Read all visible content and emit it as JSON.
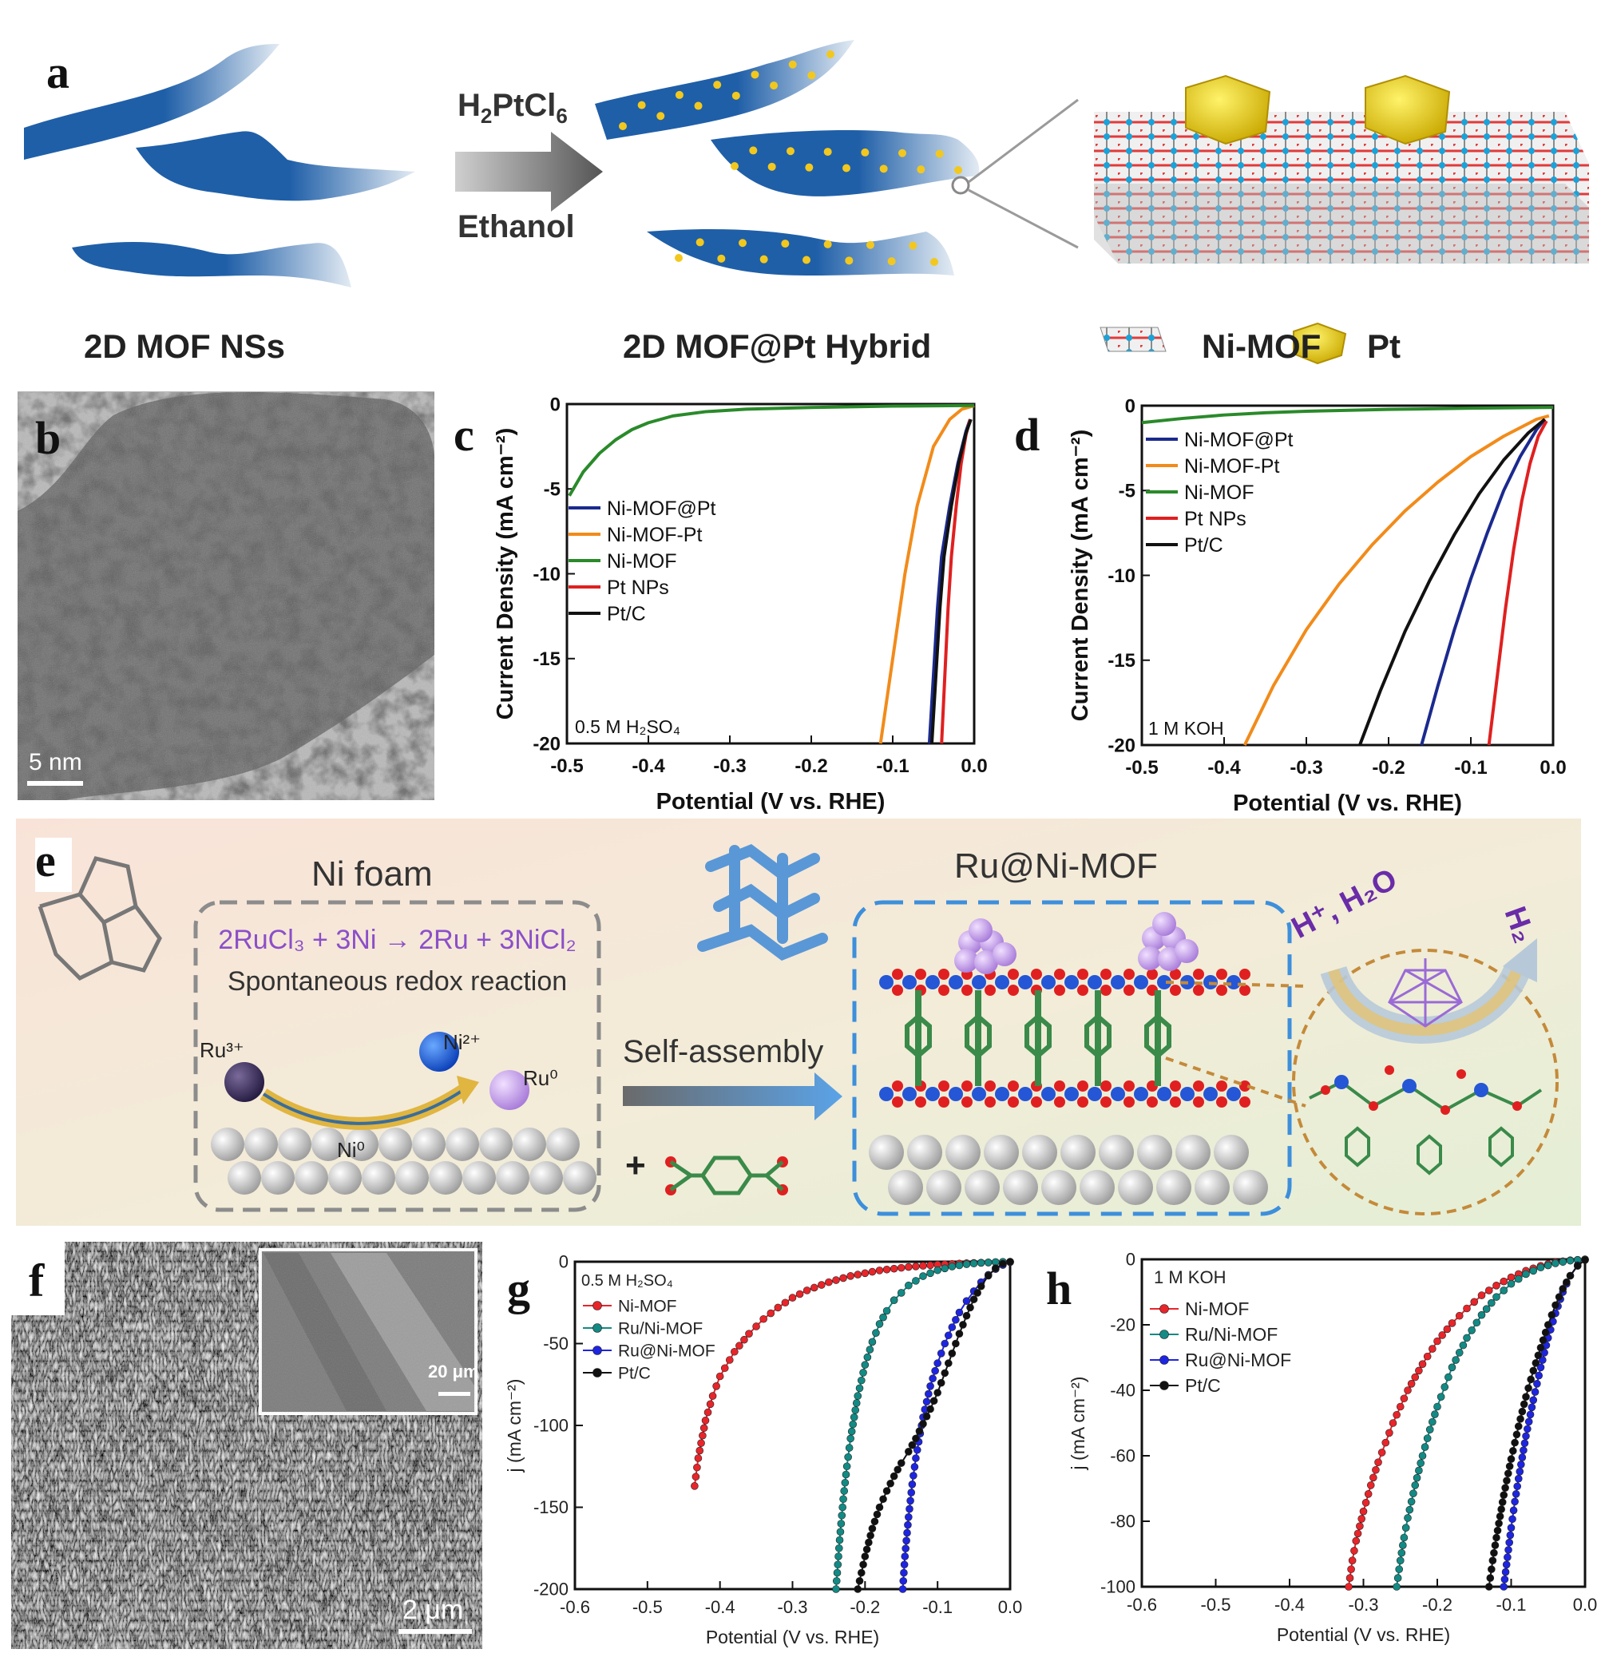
{
  "panel_labels": {
    "a": "a",
    "b": "b",
    "c": "c",
    "d": "d",
    "e": "e",
    "f": "f",
    "g": "g",
    "h": "h"
  },
  "panel_a": {
    "reagent_main": "H",
    "reagent_sub1": "2",
    "reagent_mid": "PtCl",
    "reagent_sub2": "6",
    "solvent": "Ethanol",
    "left_caption": "2D MOF NSs",
    "middle_caption": "2D MOF@Pt Hybrid",
    "legend_nimof": "Ni-MOF",
    "legend_pt": "Pt"
  },
  "panel_b": {
    "scale_bar": "5 nm"
  },
  "panel_e": {
    "left_title": "Ni foam",
    "reaction": "2RuCl₃ + 3Ni → 2Ru + 3NiCl₂",
    "reaction_desc": "Spontaneous redox reaction",
    "ru3": "Ru³⁺",
    "ni2": "Ni²⁺",
    "ru0": "Ru⁰",
    "ni0": "Ni⁰",
    "self_assembly": "Self-assembly",
    "plus": "+",
    "right_title": "Ru@Ni-MOF",
    "h_in": "H⁺, H₂O",
    "h_out": "H₂",
    "colors": {
      "title": "#333333",
      "reaction": "#8b4fc9",
      "arrow_text": "#6a2ca8"
    }
  },
  "panel_f": {
    "scale_main": "2 μm",
    "scale_inset": "20 μm"
  },
  "chart_data": [
    {
      "id": "c",
      "type": "line",
      "xlabel": "Potential (V vs. RHE)",
      "ylabel": "Current Density (mA cm⁻²)",
      "xlim": [
        -0.5,
        0.0
      ],
      "ylim": [
        -20,
        0
      ],
      "xticks": [
        "-0.5",
        "-0.4",
        "-0.3",
        "-0.2",
        "-0.1",
        "0.0"
      ],
      "yticks": [
        "0",
        "-5",
        "-10",
        "-15",
        "-20"
      ],
      "annotation": "0.5 M H₂SO₄",
      "legend_position": "center-left",
      "series": [
        {
          "name": "Ni-MOF@Pt",
          "color": "#1b2a8f",
          "x": [
            -0.055,
            -0.05,
            -0.045,
            -0.04,
            -0.03,
            -0.02,
            -0.01,
            -0.005
          ],
          "y": [
            -20,
            -16,
            -12,
            -9,
            -6,
            -3.5,
            -1.6,
            -0.9
          ]
        },
        {
          "name": "Ni-MOF-Pt",
          "color": "#f28b1a",
          "x": [
            -0.115,
            -0.1,
            -0.085,
            -0.07,
            -0.05,
            -0.03,
            -0.015,
            0.0
          ],
          "y": [
            -20,
            -15,
            -10,
            -6,
            -2.5,
            -0.9,
            -0.3,
            -0.1
          ]
        },
        {
          "name": "Ni-MOF",
          "color": "#2a8a2a",
          "x": [
            -0.497,
            -0.48,
            -0.46,
            -0.44,
            -0.42,
            -0.4,
            -0.37,
            -0.33,
            -0.28,
            -0.2,
            -0.1,
            0.0
          ],
          "y": [
            -5.4,
            -4.0,
            -2.9,
            -2.1,
            -1.5,
            -1.1,
            -0.7,
            -0.45,
            -0.3,
            -0.2,
            -0.12,
            -0.08
          ]
        },
        {
          "name": "Pt NPs",
          "color": "#e02020",
          "x": [
            -0.04,
            -0.036,
            -0.032,
            -0.028,
            -0.022,
            -0.016,
            -0.01,
            -0.005
          ],
          "y": [
            -20,
            -16,
            -12,
            -9,
            -6,
            -3.5,
            -1.8,
            -0.9
          ]
        },
        {
          "name": "Pt/C",
          "color": "#111111",
          "x": [
            -0.052,
            -0.047,
            -0.042,
            -0.037,
            -0.028,
            -0.019,
            -0.01,
            -0.004
          ],
          "y": [
            -20,
            -16,
            -12,
            -9,
            -6,
            -3.5,
            -1.7,
            -0.9
          ]
        }
      ]
    },
    {
      "id": "d",
      "type": "line",
      "xlabel": "Potential (V vs. RHE)",
      "ylabel": "Current Density (mA cm⁻²)",
      "xlim": [
        -0.5,
        0.0
      ],
      "ylim": [
        -20,
        0
      ],
      "xticks": [
        "-0.5",
        "-0.4",
        "-0.3",
        "-0.2",
        "-0.1",
        "0.0"
      ],
      "yticks": [
        "0",
        "-5",
        "-10",
        "-15",
        "-20"
      ],
      "annotation": "1 M KOH",
      "legend_position": "top-left",
      "series": [
        {
          "name": "Ni-MOF@Pt",
          "color": "#1b2a8f",
          "x": [
            -0.16,
            -0.14,
            -0.12,
            -0.1,
            -0.08,
            -0.06,
            -0.04,
            -0.02,
            -0.01
          ],
          "y": [
            -20,
            -16.5,
            -13.2,
            -10.2,
            -7.5,
            -5.0,
            -3.0,
            -1.4,
            -0.8
          ]
        },
        {
          "name": "Ni-MOF-Pt",
          "color": "#f28b1a",
          "x": [
            -0.375,
            -0.34,
            -0.3,
            -0.26,
            -0.22,
            -0.18,
            -0.14,
            -0.1,
            -0.06,
            -0.02,
            -0.005
          ],
          "y": [
            -20,
            -16.5,
            -13.2,
            -10.5,
            -8.2,
            -6.2,
            -4.5,
            -3.0,
            -1.8,
            -0.8,
            -0.6
          ]
        },
        {
          "name": "Ni-MOF",
          "color": "#2a8a2a",
          "x": [
            -0.5,
            -0.45,
            -0.4,
            -0.35,
            -0.3,
            -0.2,
            -0.1,
            0.0
          ],
          "y": [
            -1.0,
            -0.75,
            -0.55,
            -0.42,
            -0.33,
            -0.22,
            -0.15,
            -0.1
          ]
        },
        {
          "name": "Pt NPs",
          "color": "#e02020",
          "x": [
            -0.078,
            -0.068,
            -0.058,
            -0.048,
            -0.038,
            -0.028,
            -0.018,
            -0.008
          ],
          "y": [
            -20,
            -16,
            -12,
            -8.5,
            -5.6,
            -3.4,
            -1.8,
            -0.9
          ]
        },
        {
          "name": "Pt/C",
          "color": "#111111",
          "x": [
            -0.235,
            -0.21,
            -0.18,
            -0.15,
            -0.12,
            -0.09,
            -0.06,
            -0.03,
            -0.01
          ],
          "y": [
            -20,
            -16.8,
            -13.3,
            -10.3,
            -7.6,
            -5.2,
            -3.2,
            -1.6,
            -0.8
          ]
        }
      ]
    },
    {
      "id": "g",
      "type": "line",
      "xlabel": "Potential (V vs. RHE)",
      "ylabel": "j (mA cm⁻²)",
      "xlim": [
        -0.6,
        0.0
      ],
      "ylim": [
        -200,
        0
      ],
      "xticks": [
        "-0.6",
        "-0.5",
        "-0.4",
        "-0.3",
        "-0.2",
        "-0.1",
        "0.0"
      ],
      "yticks": [
        "0",
        "-50",
        "-100",
        "-150",
        "-200"
      ],
      "annotation": "0.5 M H₂SO₄",
      "legend_position": "top-left",
      "series": [
        {
          "name": "Ni-MOF",
          "color": "#e8252a",
          "x": [
            -0.435,
            -0.43,
            -0.42,
            -0.41,
            -0.4,
            -0.38,
            -0.36,
            -0.34,
            -0.32,
            -0.3,
            -0.28,
            -0.25,
            -0.22,
            -0.18,
            -0.14,
            -0.1,
            -0.06,
            -0.02,
            0.0
          ],
          "y": [
            -137,
            -120,
            -97,
            -82,
            -70,
            -55,
            -44,
            -35,
            -28,
            -22,
            -17.5,
            -12.5,
            -8.7,
            -5.3,
            -3.2,
            -1.8,
            -0.9,
            -0.3,
            -0.1
          ]
        },
        {
          "name": "Ru/Ni-MOF",
          "color": "#138a84",
          "x": [
            -0.24,
            -0.235,
            -0.23,
            -0.225,
            -0.22,
            -0.21,
            -0.2,
            -0.19,
            -0.18,
            -0.17,
            -0.16,
            -0.14,
            -0.12,
            -0.1,
            -0.08,
            -0.06,
            -0.04,
            -0.02,
            0.0
          ],
          "y": [
            -200,
            -170,
            -145,
            -125,
            -108,
            -82,
            -63,
            -49,
            -38,
            -30,
            -23.5,
            -14.5,
            -8.8,
            -5.2,
            -2.9,
            -1.5,
            -0.7,
            -0.2,
            0.0
          ]
        },
        {
          "name": "Ru@Ni-MOF",
          "color": "#1e25e0",
          "x": [
            -0.148,
            -0.145,
            -0.14,
            -0.135,
            -0.13,
            -0.12,
            -0.11,
            -0.1,
            -0.09,
            -0.08,
            -0.07,
            -0.06,
            -0.05,
            -0.04,
            -0.03,
            -0.02,
            -0.01,
            0.0
          ],
          "y": [
            -200,
            -180,
            -156,
            -136,
            -120,
            -95,
            -76,
            -62,
            -50,
            -40,
            -31,
            -24,
            -18,
            -12.5,
            -8,
            -4.5,
            -2,
            -0.3
          ]
        },
        {
          "name": "Pt/C",
          "color": "#111111",
          "x": [
            -0.21,
            -0.2,
            -0.19,
            -0.18,
            -0.17,
            -0.16,
            -0.15,
            -0.14,
            -0.13,
            -0.12,
            -0.11,
            -0.1,
            -0.09,
            -0.08,
            -0.07,
            -0.06,
            -0.05,
            -0.04,
            -0.03,
            -0.02,
            -0.01,
            0.0
          ],
          "y": [
            -200,
            -180,
            -163,
            -150,
            -140,
            -131,
            -123,
            -116,
            -108,
            -99,
            -90,
            -80,
            -68,
            -56,
            -44,
            -33,
            -23,
            -15,
            -8.5,
            -4,
            -1.2,
            0.0
          ]
        }
      ]
    },
    {
      "id": "h",
      "type": "line",
      "xlabel": "Potential (V vs. RHE)",
      "ylabel": "j (mA cm⁻²)",
      "xlim": [
        -0.6,
        0.0
      ],
      "ylim": [
        -100,
        0
      ],
      "xticks": [
        "-0.6",
        "-0.5",
        "-0.4",
        "-0.3",
        "-0.2",
        "-0.1",
        "0.0"
      ],
      "yticks": [
        "0",
        "-20",
        "-40",
        "-60",
        "-80",
        "-100"
      ],
      "annotation": "1 M KOH",
      "legend_position": "top-left",
      "series": [
        {
          "name": "Ni-MOF",
          "color": "#e8252a",
          "x": [
            -0.32,
            -0.315,
            -0.31,
            -0.3,
            -0.29,
            -0.28,
            -0.27,
            -0.26,
            -0.25,
            -0.24,
            -0.22,
            -0.2,
            -0.18,
            -0.16,
            -0.14,
            -0.12,
            -0.1,
            -0.08,
            -0.06,
            -0.04,
            -0.02,
            0.0
          ],
          "y": [
            -100,
            -92,
            -86,
            -77,
            -69,
            -62,
            -56,
            -50,
            -45,
            -40,
            -32,
            -25,
            -19.5,
            -15,
            -11,
            -8,
            -5.5,
            -3.5,
            -2,
            -0.9,
            -0.3,
            0.0
          ]
        },
        {
          "name": "Ru/Ni-MOF",
          "color": "#138a84",
          "x": [
            -0.255,
            -0.25,
            -0.245,
            -0.24,
            -0.23,
            -0.22,
            -0.21,
            -0.2,
            -0.19,
            -0.18,
            -0.16,
            -0.14,
            -0.12,
            -0.1,
            -0.08,
            -0.06,
            -0.04,
            -0.02,
            0.0
          ],
          "y": [
            -100,
            -92,
            -85,
            -79,
            -69,
            -60,
            -52,
            -45,
            -39,
            -33,
            -24,
            -17,
            -11.5,
            -7.5,
            -4.5,
            -2.5,
            -1.2,
            -0.4,
            0.0
          ]
        },
        {
          "name": "Ru@Ni-MOF",
          "color": "#1e25e0",
          "x": [
            -0.11,
            -0.105,
            -0.1,
            -0.095,
            -0.09,
            -0.08,
            -0.07,
            -0.06,
            -0.05,
            -0.04,
            -0.03,
            -0.02,
            -0.01,
            0.0
          ],
          "y": [
            -100,
            -91,
            -82,
            -74,
            -67,
            -54,
            -43,
            -33,
            -24,
            -16.5,
            -10,
            -5,
            -1.8,
            -0.2
          ]
        },
        {
          "name": "Pt/C",
          "color": "#111111",
          "x": [
            -0.13,
            -0.125,
            -0.12,
            -0.11,
            -0.1,
            -0.09,
            -0.08,
            -0.07,
            -0.06,
            -0.05,
            -0.04,
            -0.03,
            -0.02,
            -0.01,
            0.0
          ],
          "y": [
            -100,
            -92,
            -85,
            -72,
            -61,
            -51,
            -42,
            -34,
            -27,
            -20,
            -14,
            -9,
            -5,
            -2,
            -0.2
          ]
        }
      ]
    }
  ]
}
